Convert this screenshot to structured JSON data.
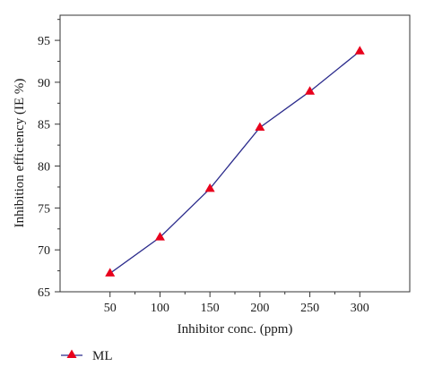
{
  "chart_data": {
    "type": "line",
    "title": "",
    "xlabel": "Inhibitor conc. (ppm)",
    "ylabel": "Inhibition efficiency (IE %)",
    "x": [
      50,
      100,
      150,
      200,
      250,
      300
    ],
    "xticks": [
      "50",
      "100",
      "150",
      "200",
      "250",
      "300"
    ],
    "yticks": [
      "65",
      "70",
      "75",
      "80",
      "85",
      "90",
      "95"
    ],
    "xlim": [
      0,
      350
    ],
    "ylim": [
      65,
      98
    ],
    "grid": false,
    "legend_position": "bottom-left",
    "series": [
      {
        "name": "ML",
        "values": [
          67.2,
          71.5,
          77.3,
          84.6,
          88.9,
          93.7
        ],
        "line_color": "#2b2b8c",
        "marker": "triangle",
        "marker_color": "#e8001c"
      }
    ]
  }
}
